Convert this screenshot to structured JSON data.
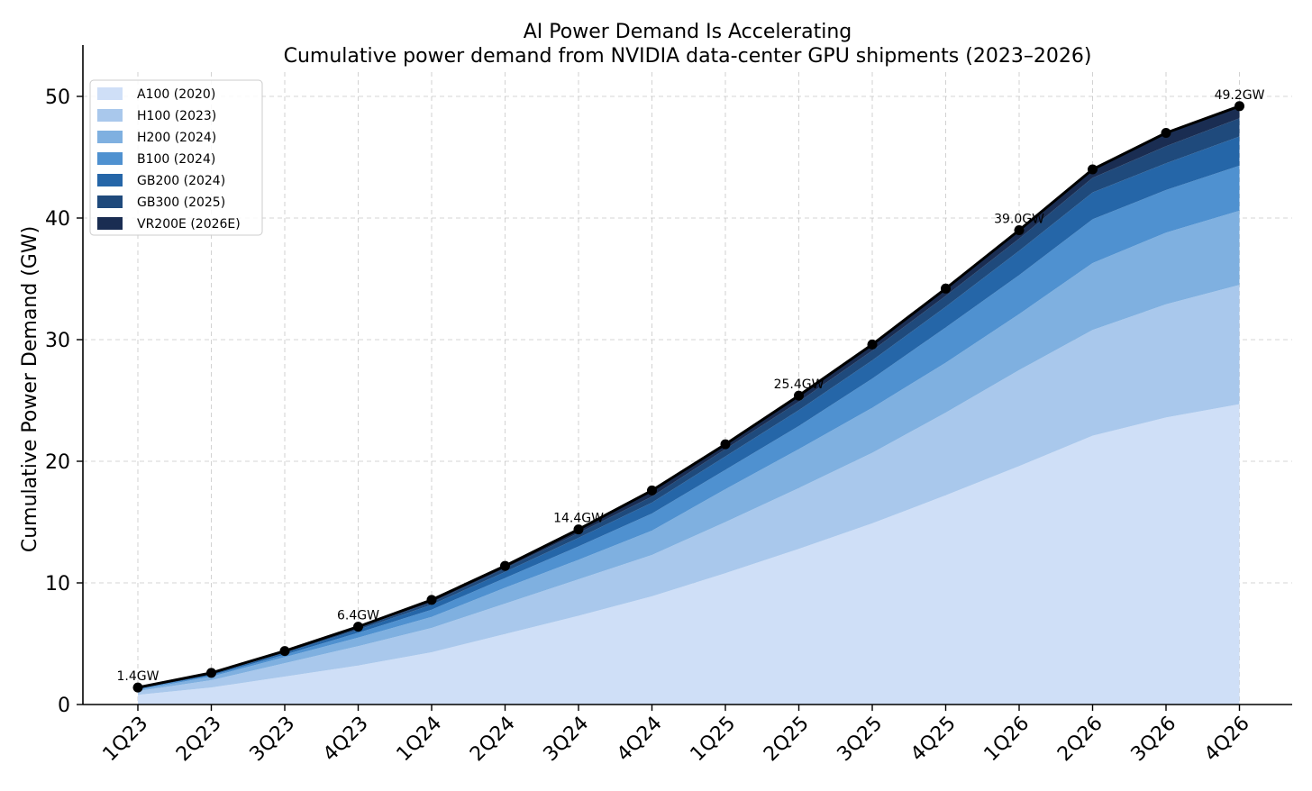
{
  "chart_data": {
    "type": "area",
    "stacked": true,
    "title": "AI Power Demand Is Accelerating",
    "subtitle": "Cumulative power demand from NVIDIA data-center GPU shipments (2023–2026)",
    "xlabel": "",
    "ylabel": "Cumulative Power Demand (GW)",
    "ylim": [
      0,
      52
    ],
    "yticks": [
      0,
      10,
      20,
      30,
      40,
      50
    ],
    "grid": true,
    "legend_position": "top-left",
    "categories": [
      "1Q23",
      "2Q23",
      "3Q23",
      "4Q23",
      "1Q24",
      "2Q24",
      "3Q24",
      "4Q24",
      "1Q25",
      "2Q25",
      "3Q25",
      "4Q25",
      "1Q26",
      "2Q26",
      "3Q26",
      "4Q26"
    ],
    "series": [
      {
        "name": "A100 (2020)",
        "color": "#cfdff7",
        "values": [
          0.8,
          1.4,
          2.3,
          3.2,
          4.3,
          5.8,
          7.3,
          8.9,
          10.8,
          12.8,
          14.9,
          17.2,
          19.6,
          22.1,
          23.6,
          24.7
        ]
      },
      {
        "name": "H100 (2023)",
        "color": "#a9c8ec",
        "values": [
          0.3,
          0.6,
          1.1,
          1.6,
          2.0,
          2.5,
          3.0,
          3.4,
          4.2,
          5.0,
          5.8,
          6.8,
          7.9,
          8.7,
          9.3,
          9.8
        ]
      },
      {
        "name": "H200 (2024)",
        "color": "#7fb0e0",
        "values": [
          0.1,
          0.3,
          0.5,
          0.7,
          0.9,
          1.3,
          1.6,
          2.0,
          2.7,
          3.2,
          3.7,
          4.1,
          4.6,
          5.5,
          5.9,
          6.1
        ]
      },
      {
        "name": "B100 (2024)",
        "color": "#4f91d0",
        "values": [
          0.1,
          0.1,
          0.2,
          0.4,
          0.6,
          0.8,
          1.1,
          1.4,
          1.6,
          1.9,
          2.4,
          2.9,
          3.2,
          3.6,
          3.5,
          3.7
        ]
      },
      {
        "name": "GB200 (2024)",
        "color": "#2566a8",
        "values": [
          0.05,
          0.1,
          0.15,
          0.25,
          0.4,
          0.5,
          0.7,
          0.9,
          1.1,
          1.3,
          1.5,
          1.7,
          2.0,
          2.2,
          2.2,
          2.4
        ]
      },
      {
        "name": "GB300 (2025)",
        "color": "#1f4a7c",
        "values": [
          0.03,
          0.05,
          0.08,
          0.15,
          0.2,
          0.3,
          0.4,
          0.5,
          0.6,
          0.7,
          0.8,
          0.9,
          1.0,
          1.2,
          1.4,
          1.5
        ]
      },
      {
        "name": "VR200E (2026E)",
        "color": "#1a2d52",
        "values": [
          0.02,
          0.05,
          0.07,
          0.1,
          0.2,
          0.2,
          0.3,
          0.5,
          0.4,
          0.5,
          0.5,
          0.6,
          0.7,
          0.7,
          1.1,
          1.0
        ]
      }
    ],
    "total": {
      "name": "Total",
      "color": "#000000",
      "values": [
        1.4,
        2.6,
        4.4,
        6.4,
        8.6,
        11.4,
        14.4,
        17.6,
        21.4,
        25.4,
        29.6,
        34.2,
        39.0,
        44.0,
        47.0,
        49.2
      ]
    },
    "annotations": [
      {
        "category": "1Q23",
        "value": 1.4,
        "text": "1.4GW"
      },
      {
        "category": "4Q23",
        "value": 6.4,
        "text": "6.4GW"
      },
      {
        "category": "3Q24",
        "value": 14.4,
        "text": "14.4GW"
      },
      {
        "category": "2Q25",
        "value": 25.4,
        "text": "25.4GW"
      },
      {
        "category": "1Q26",
        "value": 39.0,
        "text": "39.0GW"
      },
      {
        "category": "4Q26",
        "value": 49.2,
        "text": "49.2GW"
      }
    ]
  }
}
